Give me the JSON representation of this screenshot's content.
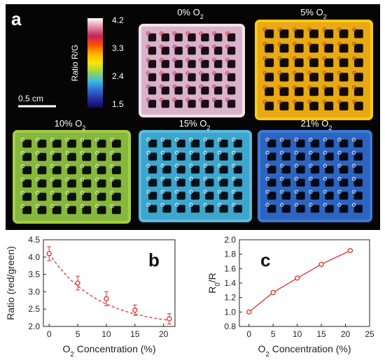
{
  "panel_a": {
    "letter": "a",
    "colorbar": {
      "label": "Ratio R/G",
      "ticks": [
        "4.2",
        "3.3",
        "2.4",
        "1.5"
      ],
      "colors": [
        "#ffffff",
        "#e28aa4",
        "#c1255b",
        "#ff5000",
        "#ffb400",
        "#f7e600",
        "#9fd34a",
        "#3fbde0",
        "#2f6fd3",
        "#2a2fa4",
        "#0a0a5a"
      ]
    },
    "scale_bar": "0.5 cm",
    "images": [
      {
        "label": "0% O",
        "subscript": "2",
        "fill": "#d9b2cc",
        "edge": "#f3e3ee",
        "spot": "#c8404a",
        "hole": "#1a0d14"
      },
      {
        "label": "5% O",
        "subscript": "2",
        "fill": "#e8a912",
        "edge": "#f7c91a",
        "spot": "#b35a0a",
        "hole": "#120a00"
      },
      {
        "label": "10% O",
        "subscript": "2",
        "fill": "#86b83d",
        "edge": "#a4cc45",
        "spot": "#d8e6a8",
        "hole": "#0b1004"
      },
      {
        "label": "15% O",
        "subscript": "2",
        "fill": "#3ea6cc",
        "edge": "#57bde0",
        "spot": "#c6eaf4",
        "hole": "#03101a"
      },
      {
        "label": "21% O",
        "subscript": "2",
        "fill": "#2c64c0",
        "edge": "#3c7bd6",
        "spot": "#c0d4f4",
        "hole": "#020816"
      }
    ]
  },
  "chart_data": [
    {
      "type": "scatter",
      "letter": "b",
      "xlabel": "O",
      "xlabel_sub": "2",
      "xlabel_rest": " Concentration (%)",
      "ylabel": "Ratio (red/green)",
      "x": [
        0,
        5,
        10,
        15,
        21
      ],
      "y": [
        4.1,
        3.25,
        2.8,
        2.47,
        2.22
      ],
      "yerr": [
        0.2,
        0.2,
        0.2,
        0.15,
        0.15
      ],
      "fit": "dashed",
      "xlim": [
        -1,
        22
      ],
      "ylim": [
        2.0,
        4.5
      ],
      "xticks": [
        "0",
        "5",
        "10",
        "15",
        "20"
      ],
      "yticks": [
        "2.0",
        "2.5",
        "3.0",
        "3.5",
        "4.0",
        "4.5"
      ],
      "color": "#d9302a"
    },
    {
      "type": "line",
      "letter": "c",
      "xlabel": "O",
      "xlabel_sub": "2",
      "xlabel_rest": " Concentration (%)",
      "ylabel": "R",
      "ylabel_sub": "0",
      "ylabel_rest": "/R",
      "x": [
        0,
        5,
        10,
        15,
        21
      ],
      "y": [
        1.0,
        1.27,
        1.47,
        1.66,
        1.85
      ],
      "xlim": [
        -2,
        25
      ],
      "ylim": [
        0.8,
        2.0
      ],
      "xticks": [
        "0",
        "5",
        "10",
        "15",
        "20",
        "25"
      ],
      "yticks": [
        "0.8",
        "1.0",
        "1.2",
        "1.4",
        "1.6",
        "1.8",
        "2.0"
      ],
      "color": "#d9302a"
    }
  ]
}
